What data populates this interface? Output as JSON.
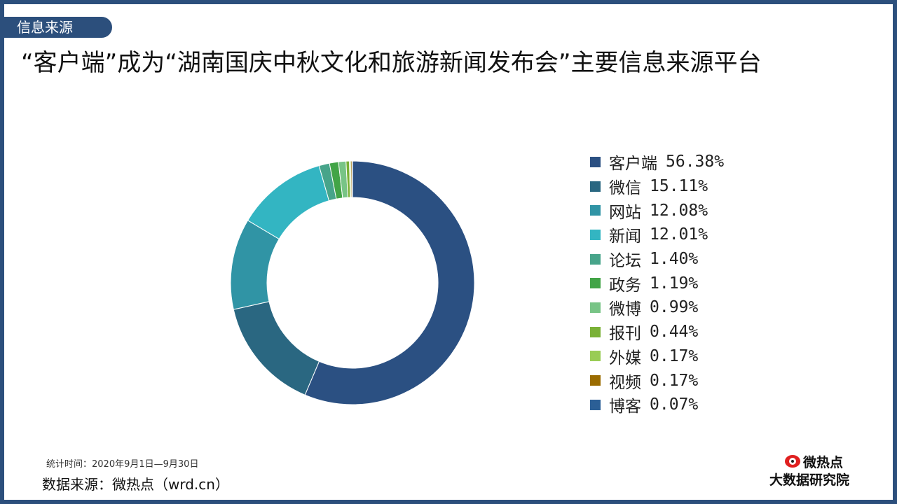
{
  "header": {
    "tag": "信息来源",
    "title": "“客户端”成为“湖南国庆中秋文化和旅游新闻发布会”主要信息来源平台"
  },
  "chart_data": {
    "type": "pie",
    "variant": "donut",
    "legend_position": "right",
    "categories": [
      "客户端",
      "微信",
      "网站",
      "新闻",
      "论坛",
      "政务",
      "微博",
      "报刊",
      "外媒",
      "视频",
      "博客"
    ],
    "values": [
      56.38,
      15.11,
      12.08,
      12.01,
      1.4,
      1.19,
      0.99,
      0.44,
      0.17,
      0.17,
      0.07
    ],
    "value_labels": [
      "56.38%",
      "15.11%",
      "12.08%",
      "12.01%",
      "1.40%",
      "1.19%",
      "0.99%",
      "0.44%",
      "0.17%",
      "0.17%",
      "0.07%"
    ],
    "colors": [
      "#2b5082",
      "#2a6781",
      "#3094a5",
      "#33b5c2",
      "#47a48a",
      "#42a447",
      "#78c486",
      "#7ab137",
      "#99cc55",
      "#9a6b00",
      "#2b5f96"
    ]
  },
  "footer": {
    "stat_time": "统计时间：2020年9月1日—9月30日",
    "source": "数据来源：微热点（wrd.cn）",
    "logo_name": "微热点",
    "logo_sub": "大数据研究院"
  }
}
